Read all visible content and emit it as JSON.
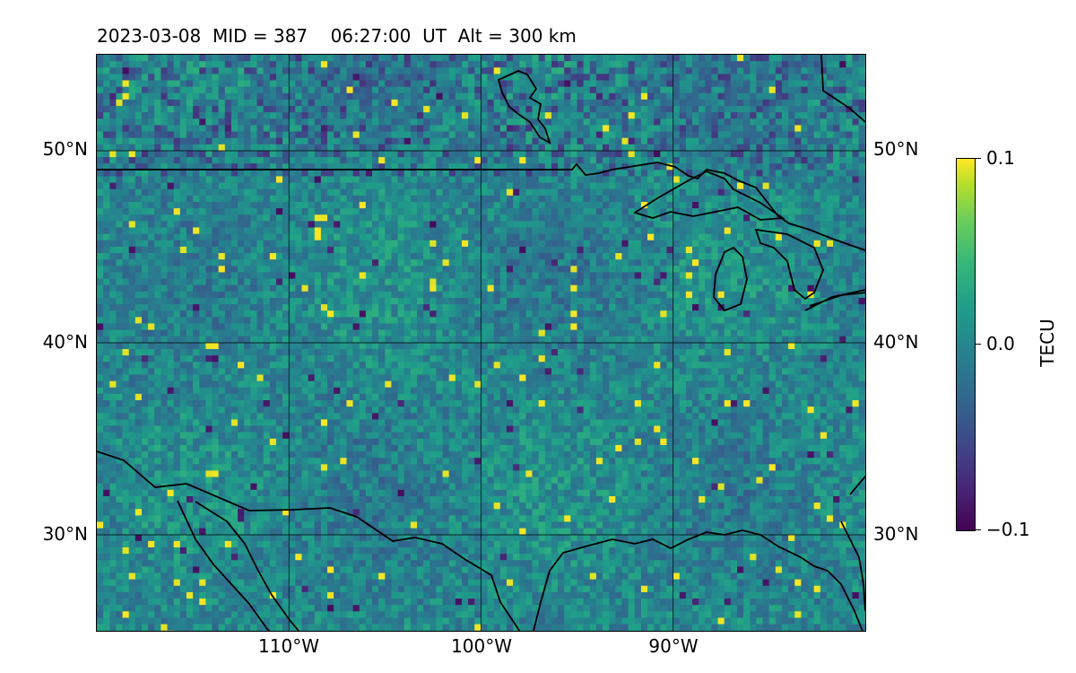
{
  "title": "2023-03-08  MID = 387    06:27:00  UT  Alt = 300 km",
  "map": {
    "extent": {
      "lon_min": -120,
      "lon_max": -80,
      "lat_min": 25,
      "lat_max": 55
    },
    "gridlines": {
      "latitudes": [
        30,
        40,
        50
      ],
      "longitudes": [
        -110,
        -100,
        -90
      ],
      "lat_labels": [
        "30°N",
        "40°N",
        "50°N"
      ],
      "lon_labels": [
        "110°W",
        "100°W",
        "90°W"
      ]
    },
    "colormap": "viridis",
    "colors": {
      "low": "#440154",
      "mid": "#26828e",
      "high": "#fde725",
      "coast": "#000000",
      "grid": "#000000"
    }
  },
  "colorbar": {
    "label": "TECU",
    "ticks": [
      "0.1",
      "0.0",
      "−0.1"
    ],
    "range": [
      -0.1,
      0.1
    ]
  }
}
